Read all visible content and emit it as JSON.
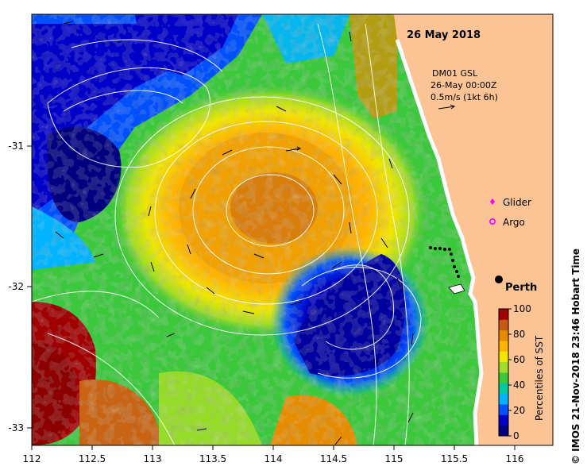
{
  "map": {
    "date_title": "26 May 2018",
    "overlay": {
      "line1": "DM01 GSL",
      "line2": "26-May 00:00Z",
      "line3": "0.5m/s (1kt 6h)"
    },
    "legend": {
      "glider_label": "Glider",
      "argo_label": "Argo",
      "glider_color": "#ff00ff",
      "argo_color": "#ff00ff"
    },
    "city": {
      "name": "Perth"
    },
    "x_ticks": [
      "112",
      "112.5",
      "113",
      "113.5",
      "114",
      "114.5",
      "115",
      "115.5",
      "116"
    ],
    "y_ticks": [
      "-31",
      "-32",
      "-33"
    ],
    "colorbar": {
      "title": "Percentiles of SST",
      "ticks": [
        "100",
        "80",
        "60",
        "40",
        "20",
        "0"
      ],
      "colors": [
        "#000080",
        "#0000c8",
        "#0050ff",
        "#00b4ff",
        "#00c8a0",
        "#3cc83c",
        "#a0dc28",
        "#f0e600",
        "#ffb400",
        "#e68c00",
        "#c85a14",
        "#a00000"
      ]
    },
    "credit": "© IMOS 21-Nov-2018 23:46 Hobart Time",
    "land_color": "#fcc494"
  }
}
